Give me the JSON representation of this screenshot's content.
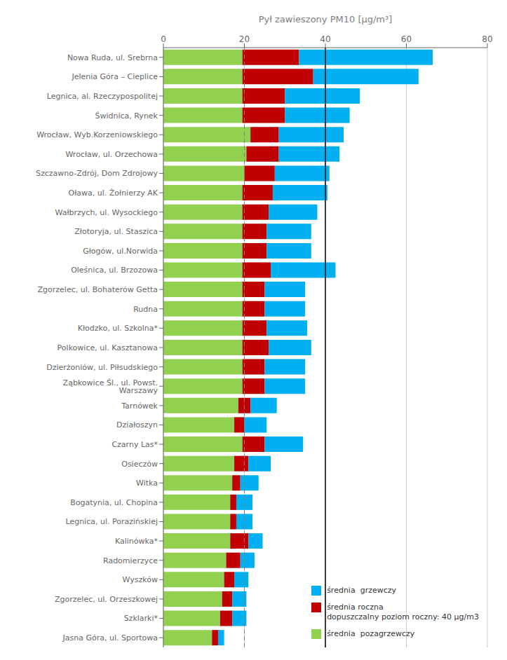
{
  "chart_data": {
    "type": "bar",
    "orientation": "horizontal",
    "stacked": true,
    "xlabel": "Pył zawieszony PM10 [μg/m³]",
    "categories": [
      "Nowa Ruda, ul. Srebrna",
      "Jelenia Góra – Cieplice",
      "Legnica, al. Rzeczypospolitej",
      "Świdnica, Rynek",
      "Wrocław, Wyb.Korzeniowskiego",
      "Wrocław, ul. Orzechowa",
      "Szczawno-Zdrój, Dom Zdrojowy",
      "Oława, ul. Żołnierzy AK",
      "Wałbrzych, ul. Wysockiego",
      "Złotoryja, ul. Staszica",
      "Głogów, ul.Norwida",
      "Oleśnica, ul. Brzozowa",
      "Zgorzelec, ul. Bohaterów Getta",
      "Rudna",
      "Kłodzko, ul. Szkolna*",
      "Polkowice, ul. Kasztanowa",
      "Dzierżoniów, ul. Piłsudskiego",
      "Ząbkowice Śl., ul. Powst. Warszawy",
      "Tarnówek",
      "Działoszyn",
      "Czarny Las*",
      "Osieczów",
      "Witka",
      "Bogatynia, ul. Chopina",
      "Legnica, ul. Porazińskiej",
      "Kalinówka*",
      "Radomierzyce",
      "Wyszków",
      "Zgorzelec, ul. Orzeszkowej",
      "Szklarki*",
      "Jasna Góra, ul. Sportowa"
    ],
    "series": [
      {
        "name": "średnia  pozagrzewczy",
        "color": "#92d050",
        "values": [
          19.5,
          19.5,
          19.5,
          19.5,
          21.5,
          20.5,
          20.0,
          19.5,
          19.5,
          19.5,
          19.5,
          19.5,
          19.5,
          19.5,
          19.5,
          19.5,
          19.5,
          19.5,
          18.5,
          17.5,
          19.5,
          17.5,
          17.0,
          16.5,
          16.5,
          16.5,
          15.5,
          15.0,
          14.5,
          14.0,
          12.0
        ]
      },
      {
        "name": "średnia roczna\ndopuszczalny poziom roczny: 40 μg/m3",
        "color": "#c00000",
        "values": [
          14.0,
          17.5,
          10.5,
          10.5,
          7.0,
          8.0,
          7.5,
          7.5,
          6.5,
          6.0,
          6.0,
          7.0,
          5.5,
          5.5,
          6.0,
          6.5,
          5.5,
          5.5,
          3.0,
          2.5,
          5.5,
          3.5,
          2.0,
          1.5,
          1.5,
          4.5,
          3.5,
          2.5,
          2.5,
          3.0,
          1.5
        ]
      },
      {
        "name": "średnia  grzewczy",
        "color": "#00b0f0",
        "values": [
          33.0,
          26.0,
          18.5,
          16.0,
          16.0,
          15.0,
          13.5,
          13.5,
          12.0,
          11.0,
          11.0,
          16.0,
          10.0,
          10.0,
          10.0,
          10.5,
          10.0,
          10.0,
          6.5,
          5.5,
          9.5,
          5.5,
          4.5,
          4.0,
          4.0,
          3.5,
          3.5,
          3.5,
          3.5,
          3.5,
          1.5
        ]
      }
    ],
    "xlim": [
      0,
      80
    ],
    "xticks": [
      0,
      20,
      40,
      60,
      80
    ],
    "grid": true,
    "legend": "lower right",
    "reference_lines": [
      {
        "x": 20,
        "color": "gray",
        "line_style": "dashed"
      },
      {
        "x": 40,
        "color": "black",
        "line_style": "solid"
      }
    ]
  }
}
